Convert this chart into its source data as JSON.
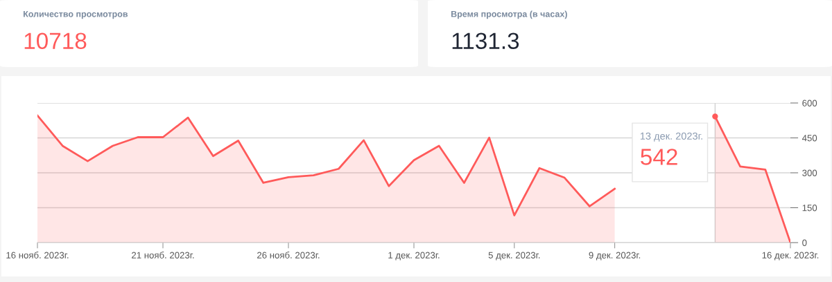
{
  "chart_data": [
    {
      "type": "other",
      "title": "Количество просмотров",
      "color": "#ff5a5a",
      "annotations": [
        "10718"
      ]
    },
    {
      "type": "other",
      "title": "Время просмотра (в часах)",
      "color": "#1f2533",
      "annotations": [
        "1131.3"
      ]
    },
    {
      "type": "area",
      "x": [
        "2023-11-16",
        "2023-11-17",
        "2023-11-18",
        "2023-11-19",
        "2023-11-20",
        "2023-11-21",
        "2023-11-22",
        "2023-11-23",
        "2023-11-24",
        "2023-11-25",
        "2023-11-26",
        "2023-11-27",
        "2023-11-28",
        "2023-11-29",
        "2023-11-30",
        "2023-12-01",
        "2023-12-02",
        "2023-12-03",
        "2023-12-04",
        "2023-12-05",
        "2023-12-06",
        "2023-12-07",
        "2023-12-08",
        "2023-12-09",
        "2023-12-10",
        "2023-12-11",
        "2023-12-12",
        "2023-12-13",
        "2023-12-14",
        "2023-12-15",
        "2023-12-16"
      ],
      "series": [
        {
          "color": "#ff5a5a",
          "values": [
            546,
            416,
            350,
            416,
            453,
            453,
            537,
            372,
            438,
            257,
            281,
            289,
            317,
            440,
            243,
            354,
            416,
            257,
            451,
            117,
            320,
            279,
            156,
            231,
            null,
            null,
            null,
            542,
            327,
            314,
            0
          ]
        }
      ],
      "xlim": [
        "2023-11-16",
        "2023-12-16"
      ],
      "xticks": [
        {
          "value": "2023-11-16",
          "label": "16 нояб. 2023г."
        },
        {
          "value": "2023-11-21",
          "label": "21 нояб. 2023г."
        },
        {
          "value": "2023-11-26",
          "label": "26 нояб. 2023г."
        },
        {
          "value": "2023-12-01",
          "label": "1 дек. 2023г."
        },
        {
          "value": "2023-12-05",
          "label": "5 дек. 2023г."
        },
        {
          "value": "2023-12-09",
          "label": "9 дек. 2023г."
        },
        {
          "value": "2023-12-16",
          "label": "16 дек. 2023г."
        }
      ],
      "ylim": [
        0,
        600
      ],
      "yticks": [
        0,
        150,
        300,
        450,
        600
      ],
      "grid": "y",
      "legend": false,
      "ref_lines": [
        {
          "axis": "x",
          "value": "2023-12-13",
          "color": "#d0d0d0"
        }
      ],
      "annotations": [
        "13 дек. 2023г.",
        "542"
      ]
    }
  ]
}
